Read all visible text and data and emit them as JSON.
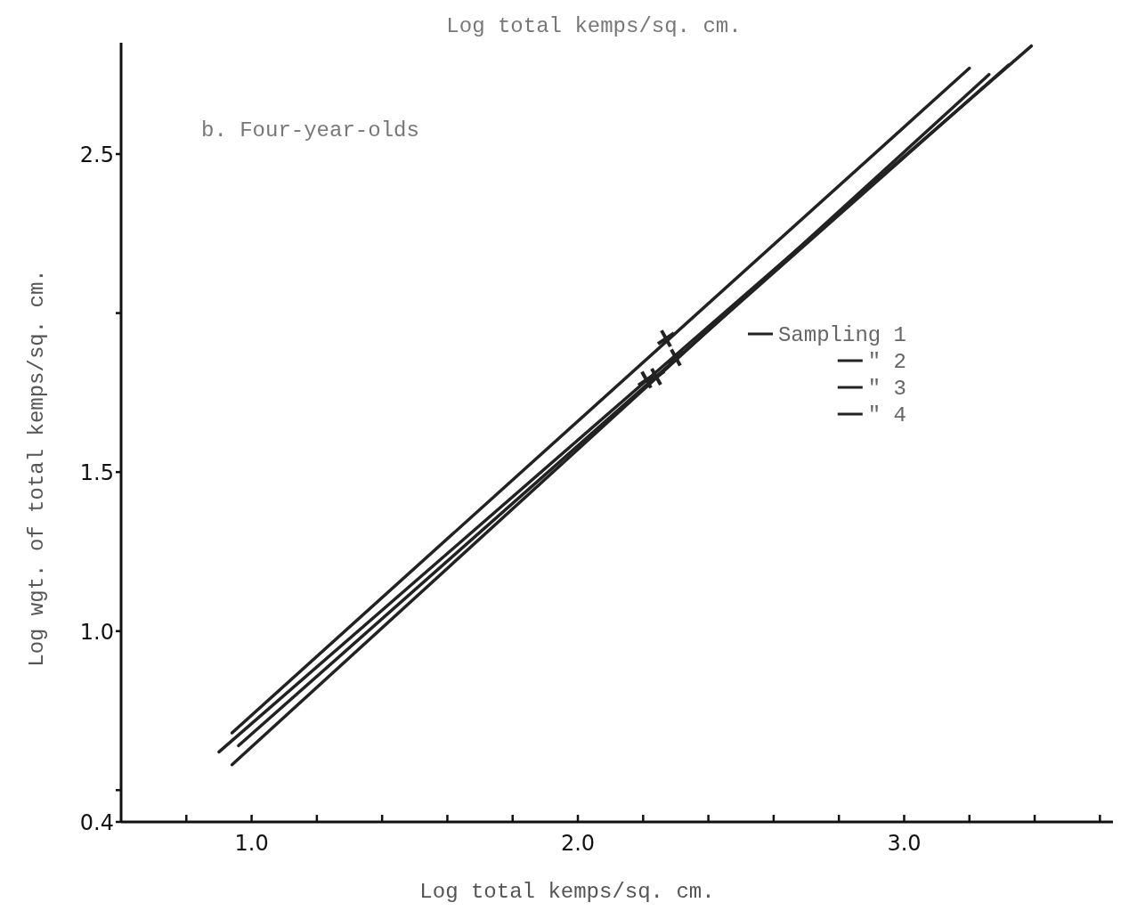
{
  "chart_data": {
    "type": "line",
    "title": "b. Four-year-olds",
    "xlabel": "Log total kemps/sq. cm.",
    "ylabel": "Log wgt. of total kemps/sq. cm.",
    "annotations": [
      "Log total kemps/sq. cm."
    ],
    "xlim": [
      0.6,
      3.64
    ],
    "ylim": [
      0.4,
      2.85
    ],
    "xticks": [
      {
        "value": 0.8,
        "label": null
      },
      {
        "value": 1.0,
        "label": "1.0"
      },
      {
        "value": 1.2,
        "label": null
      },
      {
        "value": 1.4,
        "label": null
      },
      {
        "value": 1.6,
        "label": null
      },
      {
        "value": 1.8,
        "label": null
      },
      {
        "value": 2.0,
        "label": "2.0"
      },
      {
        "value": 2.2,
        "label": null
      },
      {
        "value": 2.4,
        "label": null
      },
      {
        "value": 2.6,
        "label": null
      },
      {
        "value": 2.8,
        "label": null
      },
      {
        "value": 3.0,
        "label": "3.0"
      },
      {
        "value": 3.2,
        "label": null
      },
      {
        "value": 3.4,
        "label": null
      },
      {
        "value": 3.6,
        "label": null
      }
    ],
    "yticks": [
      {
        "value": 0.4,
        "label": "0.4"
      },
      {
        "value": 0.5,
        "label": null
      },
      {
        "value": 1.0,
        "label": "1.0"
      },
      {
        "value": 1.5,
        "label": "1.5"
      },
      {
        "value": 2.0,
        "label": null
      },
      {
        "value": 2.5,
        "label": "2.5"
      }
    ],
    "grid": false,
    "legend": "right",
    "marker": "none",
    "line_style": "solid",
    "series": [
      {
        "name": "Sampling 1",
        "color": "#222222",
        "x": [
          0.94,
          3.2
        ],
        "values": [
          0.68,
          2.77
        ]
      },
      {
        "name": "\" 2",
        "color": "#222222",
        "x": [
          0.9,
          3.39
        ],
        "values": [
          0.62,
          2.84
        ]
      },
      {
        "name": "\" 3",
        "color": "#222222",
        "x": [
          0.94,
          3.26
        ],
        "values": [
          0.58,
          2.75
        ]
      },
      {
        "name": "\" 4",
        "color": "#222222",
        "x": [
          0.96,
          3.32
        ],
        "values": [
          0.64,
          2.78
        ]
      },
      {
        "type": "scatter",
        "marker": "cross",
        "color": "#222222",
        "x": [
          2.27,
          2.3,
          2.24,
          2.21
        ],
        "values": [
          1.92,
          1.86,
          1.8,
          1.79
        ]
      }
    ]
  }
}
